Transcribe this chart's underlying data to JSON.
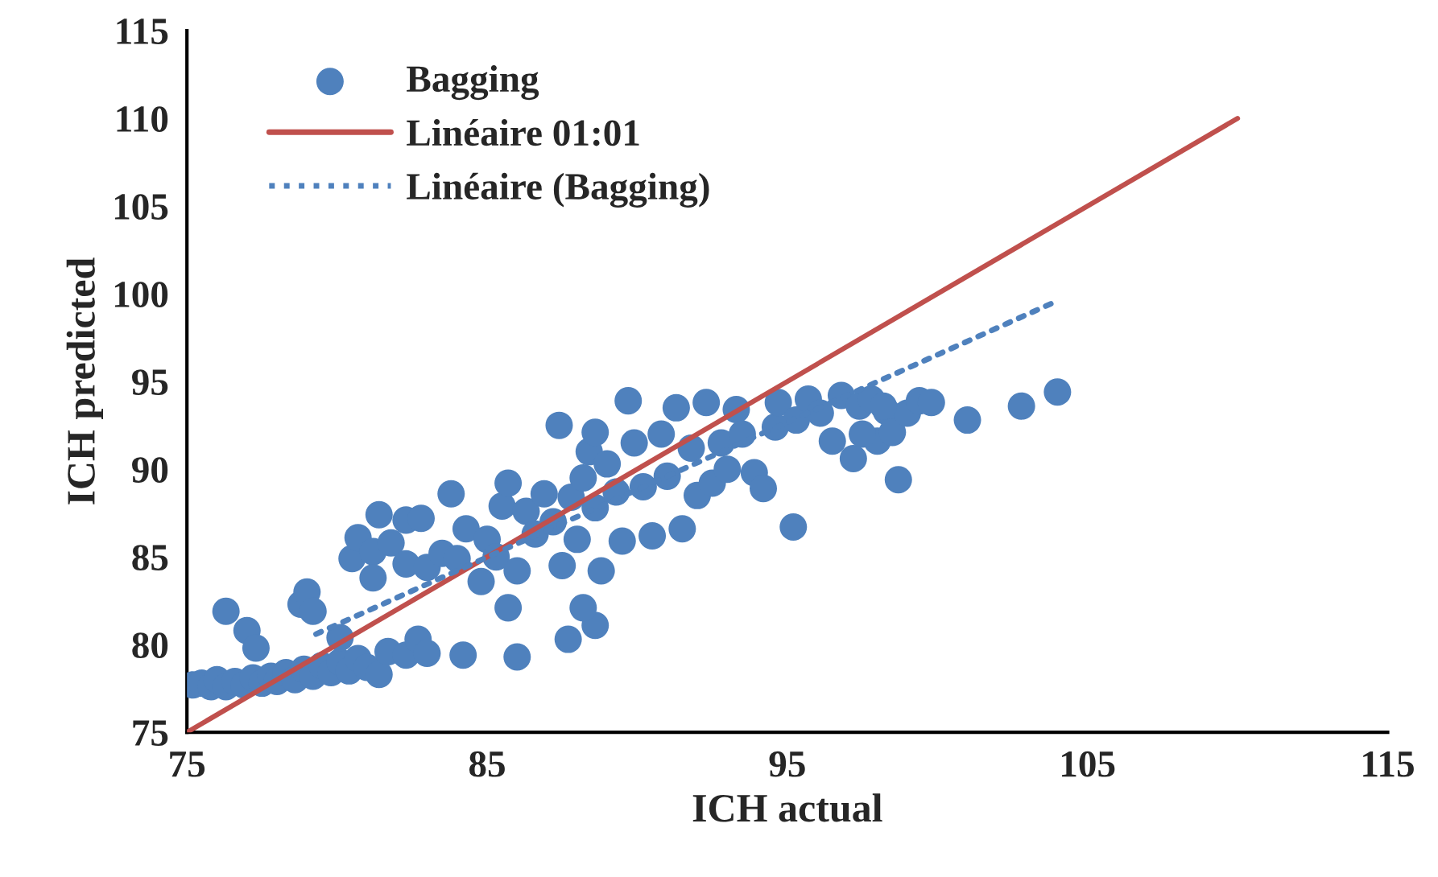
{
  "chart_data": {
    "type": "scatter",
    "xlabel": "ICH actual",
    "ylabel": "ICH predicted",
    "xlim": [
      75,
      115
    ],
    "xticks": [
      75,
      85,
      95,
      105,
      115
    ],
    "ylim": [
      75,
      115
    ],
    "yticks": [
      75,
      80,
      85,
      90,
      95,
      100,
      105,
      110,
      115
    ],
    "grid": false,
    "legend": "top left",
    "series": [
      {
        "name": "Bagging",
        "color": "#4f81bd",
        "marker": "circle",
        "x": [
          75.2,
          75.5,
          75.8,
          76.0,
          76.3,
          76.6,
          76.9,
          77.2,
          77.5,
          77.8,
          78.0,
          78.3,
          78.6,
          78.9,
          79.2,
          79.5,
          79.8,
          80.1,
          80.4,
          80.7,
          81.0,
          81.4,
          81.7,
          82.3,
          82.7,
          83.0,
          84.2,
          86.0,
          87.7,
          88.6,
          88.2,
          85.7,
          76.3,
          77.0,
          77.3,
          78.8,
          79.0,
          79.2,
          80.1,
          80.5,
          80.7,
          81.2,
          81.4,
          81.2,
          81.8,
          82.3,
          82.3,
          82.8,
          83.0,
          83.5,
          83.8,
          84.0,
          84.3,
          84.8,
          85.0,
          85.3,
          85.5,
          85.7,
          86.0,
          86.3,
          86.6,
          86.9,
          87.2,
          87.4,
          87.5,
          87.8,
          88.0,
          88.2,
          88.4,
          88.6,
          88.8,
          88.6,
          89.0,
          89.3,
          89.5,
          89.7,
          89.9,
          90.2,
          90.5,
          90.8,
          91.0,
          91.3,
          91.5,
          91.8,
          92.0,
          92.3,
          92.5,
          92.8,
          93.0,
          93.3,
          93.5,
          93.9,
          94.2,
          94.6,
          94.7,
          95.2,
          95.3,
          95.7,
          96.1,
          96.5,
          96.8,
          97.2,
          97.4,
          97.8,
          98.0,
          98.3,
          98.7,
          98.5,
          99.0,
          99.4,
          99.8,
          101.0,
          102.8,
          104.0,
          98.2,
          97.5
        ],
        "values": [
          77.7,
          77.8,
          77.6,
          78.0,
          77.6,
          77.9,
          77.7,
          78.1,
          77.8,
          78.2,
          77.9,
          78.4,
          78.0,
          78.6,
          78.2,
          78.8,
          78.4,
          79.0,
          78.5,
          79.2,
          78.7,
          78.3,
          79.6,
          79.4,
          80.3,
          79.5,
          79.4,
          79.3,
          80.3,
          81.1,
          82.1,
          82.1,
          81.9,
          80.8,
          79.8,
          82.3,
          83.0,
          81.9,
          80.4,
          84.9,
          86.1,
          85.3,
          87.4,
          83.8,
          85.8,
          84.6,
          87.1,
          87.2,
          84.4,
          85.2,
          88.6,
          84.9,
          86.6,
          83.6,
          86.0,
          85.0,
          87.9,
          89.2,
          84.2,
          87.6,
          86.3,
          88.6,
          87.0,
          92.5,
          84.5,
          88.4,
          86.0,
          89.5,
          91.0,
          87.8,
          84.2,
          92.1,
          90.3,
          88.7,
          85.9,
          93.9,
          91.5,
          89.0,
          86.2,
          92.0,
          89.6,
          93.5,
          86.6,
          91.2,
          88.5,
          93.8,
          89.2,
          91.5,
          90.0,
          93.4,
          92.0,
          89.8,
          88.9,
          92.4,
          93.8,
          86.7,
          92.8,
          94.0,
          93.2,
          91.6,
          94.2,
          90.6,
          93.6,
          94.0,
          91.6,
          93.3,
          89.4,
          92.1,
          93.2,
          93.9,
          93.8,
          92.8,
          93.6,
          94.4,
          93.6,
          92.0
        ]
      },
      {
        "name": "Linéaire 01:01",
        "type": "line",
        "color": "#c0504d",
        "line_style": "solid",
        "x": [
          75,
          110
        ],
        "values": [
          75,
          110
        ]
      },
      {
        "name": "Linéaire (Bagging)",
        "type": "line",
        "color": "#4f81bd",
        "line_style": "dotted",
        "x": [
          79.3,
          104
        ],
        "values": [
          80.6,
          99.6
        ]
      }
    ]
  }
}
